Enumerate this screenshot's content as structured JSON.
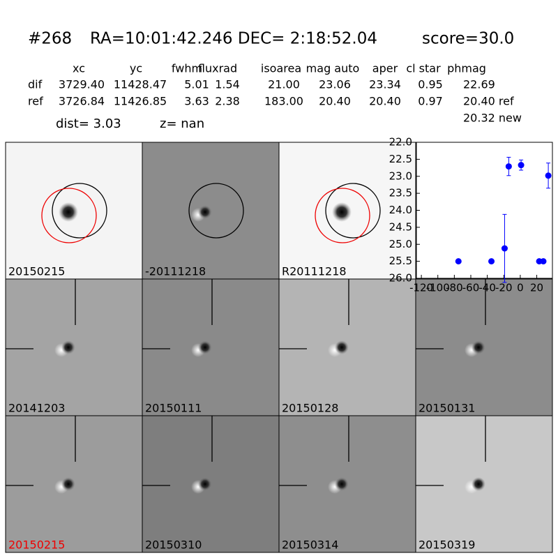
{
  "header": {
    "id": "#268",
    "coords": "RA=10:01:42.246 DEC= 2:18:52.04",
    "score": "score=30.0"
  },
  "table": {
    "columns": [
      "xc",
      "yc",
      "fwhm",
      "fluxrad",
      "isoarea",
      "mag auto",
      "aper",
      "cl star",
      "phmag"
    ],
    "rows": [
      [
        "dif",
        "3729.40",
        "11428.47",
        "5.01",
        "1.54",
        "21.00",
        "23.06",
        "23.34",
        "0.95",
        "22.69"
      ],
      [
        "ref",
        "3726.84",
        "11426.85",
        "3.63",
        "2.38",
        "183.00",
        "20.40",
        "20.40",
        "0.97",
        "20.40 ref"
      ]
    ],
    "extra": "20.32 new"
  },
  "info": {
    "dist": "dist=  3.03",
    "z": "z=   nan"
  },
  "stamps": [
    "20150215",
    "-20111218",
    "R20111218",
    "20141203",
    "20150111",
    "20150128",
    "20150131",
    "20150215",
    "20150310",
    "20150314",
    "20150319"
  ],
  "chart_data": {
    "type": "errorbar",
    "xlim": [
      -126,
      39
    ],
    "ylim": [
      26,
      22
    ],
    "xticks": [
      -120,
      -100,
      -80,
      -60,
      -40,
      -20,
      0,
      20
    ],
    "yticks": [
      {
        "value": 22,
        "label": "22.0"
      },
      22.5,
      {
        "value": 23,
        "label": "23.0"
      },
      23.5,
      {
        "value": 24,
        "label": "24.0"
      },
      24.5,
      {
        "value": 25,
        "label": "25.0"
      },
      25.5,
      {
        "value": 26,
        "label": "26.0"
      }
    ],
    "series": [
      {
        "color": "#0000ff",
        "x": [
          -75,
          -35,
          -19,
          -14,
          1,
          23,
          28,
          34
        ],
        "values": [
          25.5,
          25.5,
          25.12,
          22.71,
          22.67,
          25.5,
          25.5,
          22.98
        ],
        "errors": [
          0.05,
          0.05,
          1.0,
          0.27,
          0.15,
          0.05,
          0.05,
          0.37
        ]
      }
    ]
  }
}
